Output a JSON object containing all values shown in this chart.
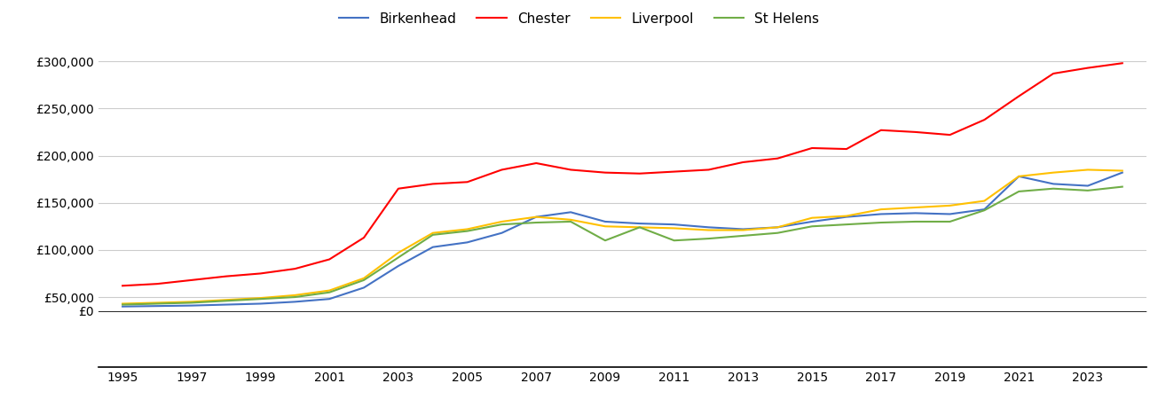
{
  "years": [
    1995,
    1996,
    1997,
    1998,
    1999,
    2000,
    2001,
    2002,
    2003,
    2004,
    2005,
    2006,
    2007,
    2008,
    2009,
    2010,
    2011,
    2012,
    2013,
    2014,
    2015,
    2016,
    2017,
    2018,
    2019,
    2020,
    2021,
    2022,
    2023,
    2024
  ],
  "Birkenhead": [
    40000,
    40500,
    41000,
    42000,
    43000,
    45000,
    48000,
    60000,
    83000,
    103000,
    108000,
    118000,
    135000,
    140000,
    130000,
    128000,
    127000,
    124000,
    122000,
    124000,
    130000,
    135000,
    138000,
    139000,
    138000,
    143000,
    178000,
    170000,
    168000,
    182000
  ],
  "Chester": [
    62000,
    64000,
    68000,
    72000,
    75000,
    80000,
    90000,
    113000,
    165000,
    170000,
    172000,
    185000,
    192000,
    185000,
    182000,
    181000,
    183000,
    185000,
    193000,
    197000,
    208000,
    207000,
    227000,
    225000,
    222000,
    238000,
    263000,
    287000,
    293000,
    298000
  ],
  "Liverpool": [
    43000,
    44000,
    45000,
    47000,
    49000,
    52000,
    57000,
    70000,
    97000,
    118000,
    122000,
    130000,
    135000,
    132000,
    125000,
    124000,
    123000,
    121000,
    121000,
    124000,
    134000,
    136000,
    143000,
    145000,
    147000,
    152000,
    178000,
    182000,
    185000,
    184000
  ],
  "St Helens": [
    42000,
    43000,
    44000,
    46000,
    48000,
    50000,
    55000,
    68000,
    92000,
    116000,
    120000,
    127000,
    129000,
    130000,
    110000,
    124000,
    110000,
    112000,
    115000,
    118000,
    125000,
    127000,
    129000,
    130000,
    130000,
    142000,
    162000,
    165000,
    163000,
    167000
  ],
  "colors": {
    "Birkenhead": "#4472C4",
    "Chester": "#FF0000",
    "Liverpool": "#FFC000",
    "St Helens": "#70AD47"
  },
  "plot_ylim": [
    35000,
    310000
  ],
  "yticks_in_plot": [
    50000,
    100000,
    150000,
    200000,
    250000,
    300000
  ],
  "ytick_labels_in_plot": [
    "£50,000",
    "£100,000",
    "£150,000",
    "£200,000",
    "£250,000",
    "£300,000"
  ],
  "xticks": [
    1995,
    1997,
    1999,
    2001,
    2003,
    2005,
    2007,
    2009,
    2011,
    2013,
    2015,
    2017,
    2019,
    2021,
    2023
  ],
  "xlim": [
    1994.3,
    2024.7
  ],
  "background_color": "#ffffff",
  "grid_color": "#cccccc",
  "legend_order": [
    "Birkenhead",
    "Chester",
    "Liverpool",
    "St Helens"
  ]
}
